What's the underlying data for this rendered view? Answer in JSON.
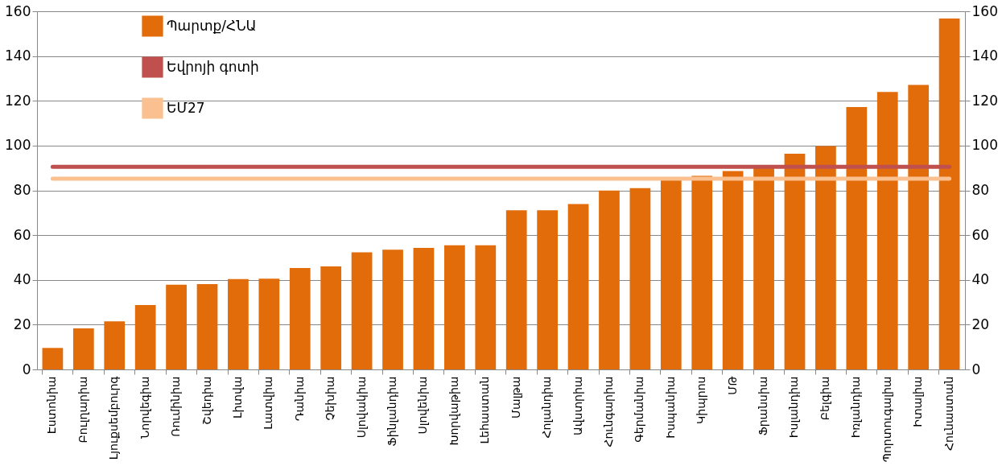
{
  "chart_data": {
    "type": "bar",
    "categories": [
      "Էստոնիա",
      "Բուլղարիա",
      "Լյուքսեմբուրգ",
      "Նորվեգիա",
      "Ռումինիա",
      "Շվեդիա",
      "Լիտվա",
      "Լատվիա",
      "Դանիա",
      "Չեխիա",
      "Սլովակիա",
      "Ֆինլանդիա",
      "Սլովենիա",
      "Խորվաթիա",
      "Լեհաստան",
      "Մալթա",
      "Հոլանդիա",
      "Ավստրիա",
      "Հունգարիա",
      "Գերմանիա",
      "Իսպանիա",
      "Կիպրոս",
      "ՄԹ",
      "Ֆրանսիա",
      "Իսլանդիա",
      "Բելգիա",
      "Իռլանդիա",
      "Պորտուգալիա",
      "Իտալիա",
      "Հունաստան"
    ],
    "series": [
      {
        "name": "Պարտք/ՀՆԱ",
        "color": "#e36c0a",
        "values": [
          9.6,
          18.3,
          21.5,
          28.8,
          37.8,
          38.1,
          40.4,
          40.5,
          45.3,
          46.0,
          52.3,
          53.5,
          54.3,
          55.5,
          55.5,
          71.1,
          71.1,
          73.9,
          79.9,
          81.0,
          85.0,
          86.5,
          88.6,
          90.0,
          96.4,
          99.8,
          117.2,
          124.0,
          127.1,
          156.8
        ]
      },
      {
        "name": "Եվրոյի գոտի",
        "type": "line",
        "color": "#c0504d",
        "values": [
          90.5,
          90.5,
          90.5,
          90.5,
          90.5,
          90.5,
          90.5,
          90.5,
          90.5,
          90.5,
          90.5,
          90.5,
          90.5,
          90.5,
          90.5,
          90.5,
          90.5,
          90.5,
          90.5,
          90.5,
          90.5,
          90.5,
          90.5,
          90.5,
          90.5,
          90.5,
          90.5,
          90.5,
          90.5,
          90.5
        ]
      },
      {
        "name": "ԵՄ27",
        "type": "line",
        "color": "#fac090",
        "values": [
          85.2,
          85.2,
          85.2,
          85.2,
          85.2,
          85.2,
          85.2,
          85.2,
          85.2,
          85.2,
          85.2,
          85.2,
          85.2,
          85.2,
          85.2,
          85.2,
          85.2,
          85.2,
          85.2,
          85.2,
          85.2,
          85.2,
          85.2,
          85.2,
          85.2,
          85.2,
          85.2,
          85.2,
          85.2,
          85.2
        ]
      }
    ],
    "ylim": [
      0,
      160
    ],
    "yticks": [
      0,
      20,
      40,
      60,
      80,
      100,
      120,
      140,
      160
    ],
    "y2lim": [
      0,
      160
    ],
    "y2ticks": [
      0,
      20,
      40,
      60,
      80,
      100,
      120,
      140,
      160
    ],
    "grid": "y",
    "legend": "top left"
  }
}
